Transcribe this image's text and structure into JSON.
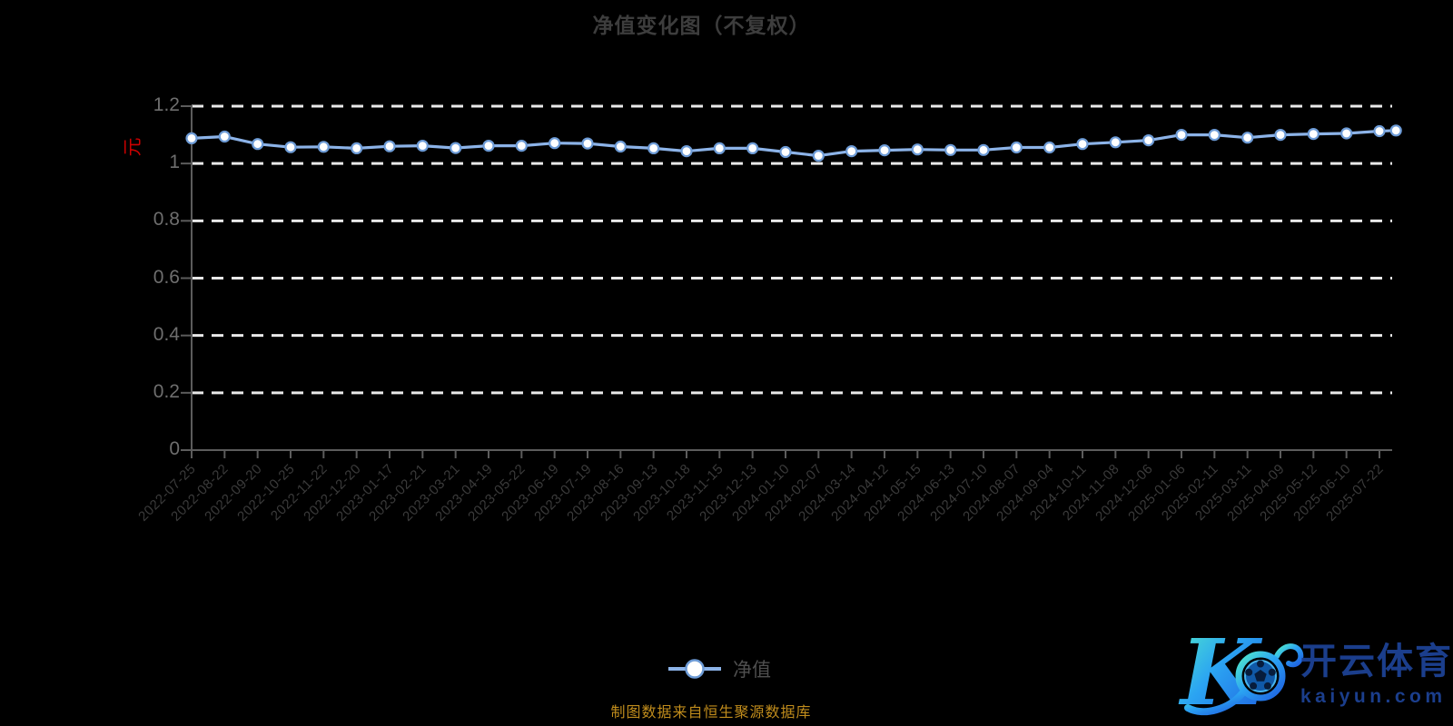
{
  "chart_data": {
    "type": "line",
    "title": "净值变化图（不复权）",
    "xlabel": "",
    "ylabel": "元",
    "ylim": [
      0,
      1.2
    ],
    "y_ticks": [
      "0",
      "0.2",
      "0.4",
      "0.6",
      "0.8",
      "1",
      "1.2"
    ],
    "grid": "horizontal-dashed",
    "legend_position": "bottom",
    "trailing_unlabeled_point": true,
    "categories": [
      "2022-07-25",
      "2022-08-22",
      "2022-09-20",
      "2022-10-25",
      "2022-11-22",
      "2022-12-20",
      "2023-01-17",
      "2023-02-21",
      "2023-03-21",
      "2023-04-19",
      "2023-05-22",
      "2023-06-19",
      "2023-07-19",
      "2023-08-16",
      "2023-09-13",
      "2023-10-18",
      "2023-11-15",
      "2023-12-13",
      "2024-01-10",
      "2024-02-07",
      "2024-03-14",
      "2024-04-12",
      "2024-05-15",
      "2024-06-13",
      "2024-07-10",
      "2024-08-07",
      "2024-09-04",
      "2024-10-11",
      "2024-11-08",
      "2024-12-06",
      "2025-01-06",
      "2025-02-11",
      "2025-03-11",
      "2025-04-09",
      "2025-05-12",
      "2025-06-10",
      "2025-07-22"
    ],
    "series": [
      {
        "name": "净值",
        "values": [
          1.088,
          1.094,
          1.068,
          1.057,
          1.058,
          1.053,
          1.06,
          1.062,
          1.054,
          1.062,
          1.062,
          1.071,
          1.07,
          1.059,
          1.053,
          1.043,
          1.053,
          1.053,
          1.04,
          1.027,
          1.043,
          1.046,
          1.049,
          1.047,
          1.047,
          1.056,
          1.056,
          1.068,
          1.074,
          1.081,
          1.1,
          1.1,
          1.09,
          1.1,
          1.103,
          1.105,
          1.113,
          1.115
        ]
      }
    ]
  },
  "caption": "制图数据来自恒生聚源数据库",
  "logo": {
    "brand": "开云体育",
    "domain": "kaiyun.com"
  },
  "colors": {
    "background": "#000000",
    "title": "#3d3d3d",
    "axis": "#5c5c5c",
    "grid": "#e9e9e9",
    "line": "#8cb3e8",
    "marker_fill": "#ffffff",
    "marker_stroke": "#6d9bd6",
    "x_label": "#3b3b3b",
    "y_label": "#6e6e6e",
    "unit_label": "#cc0000",
    "legend_text": "#4f4f4f",
    "caption": "#c08c1c",
    "logo_text": "#1b3e8c",
    "logo_gradient_start": "#52ecca",
    "logo_gradient_mid": "#2ba4f2",
    "logo_gradient_end": "#1e5fe0"
  }
}
